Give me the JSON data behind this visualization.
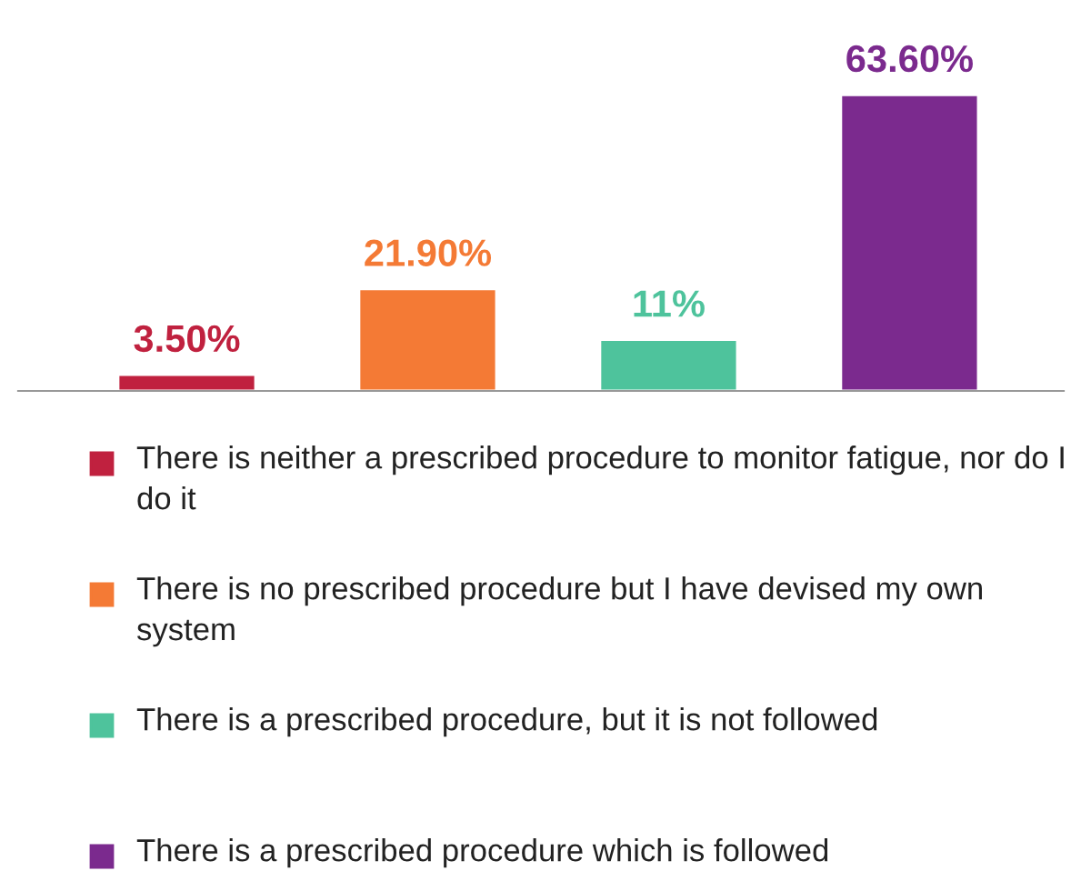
{
  "chart_data": {
    "type": "bar",
    "categories": [
      null,
      null,
      null,
      null
    ],
    "stacked": true,
    "series": [
      {
        "name": "There is neither a prescribed procedure to monitor fatigue, nor do I do it",
        "color": "#c0213f",
        "values": [
          3.5,
          null,
          null,
          null
        ],
        "value_labels": [
          "3.50%",
          null,
          null,
          null
        ]
      },
      {
        "name": "There is no prescribed procedure but I have devised my own system",
        "color": "#f47a35",
        "values": [
          null,
          21.9,
          null,
          null
        ],
        "value_labels": [
          null,
          "21.90%",
          null,
          null
        ]
      },
      {
        "name": "There is a prescribed procedure, but it is not followed",
        "color": "#4ec39c",
        "values": [
          null,
          null,
          11,
          null
        ],
        "value_labels": [
          null,
          null,
          "11%",
          null
        ]
      },
      {
        "name": "There is a prescribed procedure which is followed",
        "color": "#7b2a8e",
        "values": [
          null,
          null,
          null,
          63.6
        ],
        "value_labels": [
          null,
          null,
          null,
          "63.60%"
        ]
      }
    ],
    "legend": "bottom"
  }
}
